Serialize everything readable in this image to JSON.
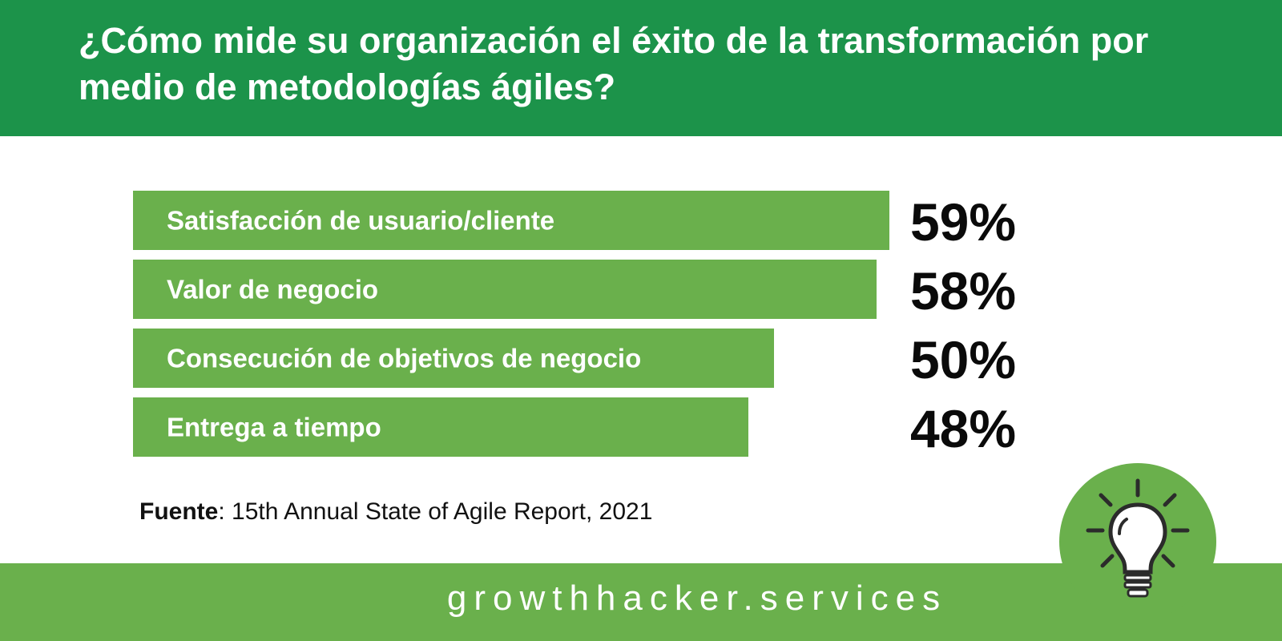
{
  "header": {
    "title": "¿Cómo mide su organización el éxito de la transformación por medio de metodologías ágiles?"
  },
  "chart_data": {
    "type": "bar",
    "orientation": "horizontal",
    "categories": [
      "Satisfacción de usuario/cliente",
      "Valor de negocio",
      "Consecución de objetivos de negocio",
      "Entrega a tiempo"
    ],
    "values": [
      59,
      58,
      50,
      48
    ],
    "value_labels": [
      "59%",
      "58%",
      "50%",
      "48%"
    ],
    "unit": "%",
    "title": "¿Cómo mide su organización el éxito de la transformación por medio de metodologías ágiles?",
    "xlabel": "",
    "ylabel": "",
    "grid": false,
    "legend": "none"
  },
  "source": {
    "label": "Fuente",
    "text": ": 15th Annual State of Agile Report, 2021"
  },
  "footer": {
    "brand": "growthhacker.services"
  },
  "icons": {
    "badge": "lightbulb-icon"
  },
  "colors": {
    "header": "#1c934a",
    "bar": "#6ab04c",
    "footer": "#6ab04c",
    "text_dark": "#0a0a0a",
    "text_light": "#ffffff"
  }
}
